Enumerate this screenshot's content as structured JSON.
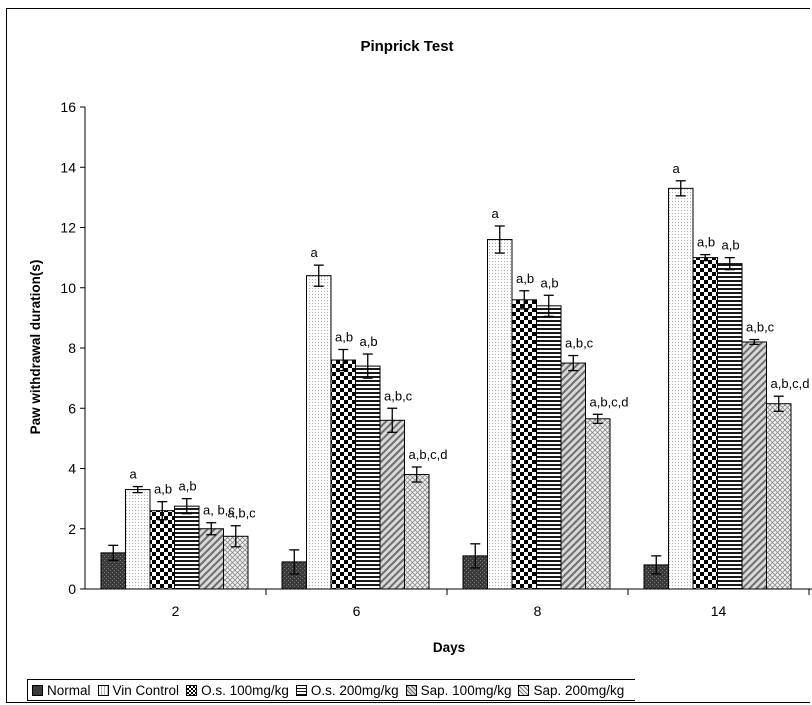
{
  "chart_data": {
    "type": "bar",
    "title": "Pinprick Test",
    "xlabel": "Days",
    "ylabel": "Paw withdrawal duration(s)",
    "categories": [
      "2",
      "6",
      "8",
      "14"
    ],
    "ylim": [
      0,
      16
    ],
    "yticks": [
      0,
      2,
      4,
      6,
      8,
      10,
      12,
      14,
      16
    ],
    "grid": false,
    "legend_position": "bottom",
    "series": [
      {
        "name": "Normal",
        "pattern": "solid-dark",
        "values": [
          1.2,
          0.9,
          1.1,
          0.8
        ],
        "errors": [
          0.25,
          0.4,
          0.4,
          0.3
        ],
        "labels": [
          "",
          "",
          "",
          ""
        ]
      },
      {
        "name": "Vin Control",
        "pattern": "light-dots",
        "values": [
          3.3,
          10.4,
          11.6,
          13.3
        ],
        "errors": [
          0.1,
          0.35,
          0.45,
          0.25
        ],
        "labels": [
          "a",
          "a",
          "a",
          "a"
        ]
      },
      {
        "name": "O.s. 100mg/kg",
        "pattern": "checker",
        "values": [
          2.6,
          7.6,
          9.6,
          11.0
        ],
        "errors": [
          0.3,
          0.35,
          0.3,
          0.1
        ],
        "labels": [
          "a,b",
          "a,b",
          "a,b",
          "a,b"
        ]
      },
      {
        "name": "O.s. 200mg/kg",
        "pattern": "horizontal-lines",
        "values": [
          2.75,
          7.4,
          9.4,
          10.8
        ],
        "errors": [
          0.25,
          0.4,
          0.35,
          0.2
        ],
        "labels": [
          "a,b",
          "a,b",
          "a,b",
          "a,b"
        ]
      },
      {
        "name": "Sap. 100mg/kg",
        "pattern": "diagonal",
        "values": [
          2.0,
          5.6,
          7.5,
          8.2
        ],
        "errors": [
          0.2,
          0.4,
          0.25,
          0.08
        ],
        "labels": [
          "a, b,c",
          "a,b,c",
          "a,b,c",
          "a,b,c"
        ]
      },
      {
        "name": "Sap. 200mg/kg",
        "pattern": "crosshatch",
        "values": [
          1.75,
          3.8,
          5.65,
          6.15
        ],
        "errors": [
          0.35,
          0.25,
          0.15,
          0.25
        ],
        "labels": [
          "a,b,c",
          "a,b,c,d",
          "a,b,c,d",
          "a,b,c,d"
        ]
      }
    ]
  }
}
